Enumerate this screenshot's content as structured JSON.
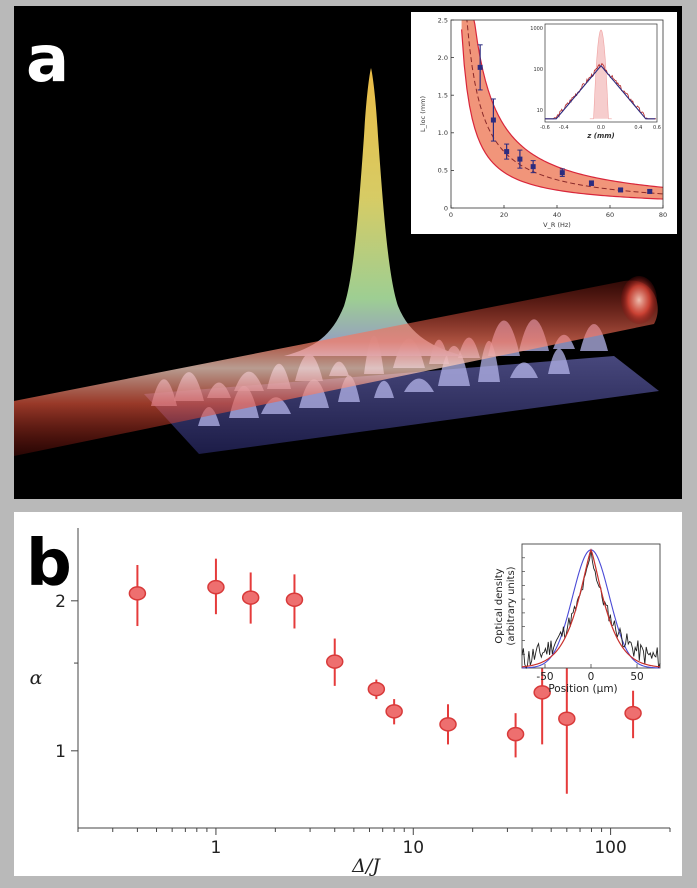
{
  "panel_a": {
    "letter": "a",
    "inset": {
      "chart_data": {
        "type": "line",
        "ylabel": "L_loc (mm)",
        "xlabel": "V_R (Hz)",
        "xlim": [
          0,
          80
        ],
        "ylim": [
          0,
          2.5
        ],
        "xticks": [
          "0",
          "20",
          "40",
          "60",
          "80"
        ],
        "yticks": [
          "0",
          "0.5",
          "1.0",
          "1.5",
          "2.0",
          "2.5"
        ],
        "points": [
          {
            "x": 11,
            "y": 1.87,
            "err": 0.3
          },
          {
            "x": 16,
            "y": 1.17,
            "err": 0.28
          },
          {
            "x": 21,
            "y": 0.75,
            "err": 0.1
          },
          {
            "x": 26,
            "y": 0.65,
            "err": 0.12
          },
          {
            "x": 31,
            "y": 0.55,
            "err": 0.08
          },
          {
            "x": 42,
            "y": 0.47,
            "err": 0.05
          },
          {
            "x": 53,
            "y": 0.33,
            "err": 0.03
          },
          {
            "x": 64,
            "y": 0.24,
            "err": 0.02
          },
          {
            "x": 75,
            "y": 0.22,
            "err": 0.02
          }
        ],
        "sub_inset": {
          "xlabel": "z (mm)",
          "xticks": [
            "-0.6",
            "-0.4",
            "0.0",
            "0.4",
            "0.6"
          ],
          "yticks": [
            "1000",
            "100",
            "10"
          ],
          "xlim": [
            -0.6,
            0.6
          ],
          "scale": "log"
        }
      }
    }
  },
  "panel_b": {
    "letter": "b",
    "chart_data": {
      "type": "scatter",
      "xlabel": "Δ/J",
      "ylabel": "α",
      "xscale": "log",
      "yscale": "log",
      "xlim": [
        0.2,
        200
      ],
      "ylim": [
        0.7,
        2.8
      ],
      "xticks": [
        "1",
        "10",
        "100"
      ],
      "yticks": [
        "1",
        "2"
      ],
      "points": [
        {
          "x": 0.4,
          "y": 2.07,
          "lo": 1.78,
          "hi": 2.36
        },
        {
          "x": 1.0,
          "y": 2.13,
          "lo": 1.88,
          "hi": 2.43
        },
        {
          "x": 1.5,
          "y": 2.03,
          "lo": 1.8,
          "hi": 2.28
        },
        {
          "x": 2.5,
          "y": 2.01,
          "lo": 1.76,
          "hi": 2.26
        },
        {
          "x": 4.0,
          "y": 1.51,
          "lo": 1.35,
          "hi": 1.68
        },
        {
          "x": 6.5,
          "y": 1.33,
          "lo": 1.27,
          "hi": 1.39
        },
        {
          "x": 8.0,
          "y": 1.2,
          "lo": 1.13,
          "hi": 1.27
        },
        {
          "x": 15,
          "y": 1.13,
          "lo": 1.03,
          "hi": 1.24
        },
        {
          "x": 33,
          "y": 1.08,
          "lo": 0.97,
          "hi": 1.19
        },
        {
          "x": 45,
          "y": 1.31,
          "lo": 1.03,
          "hi": 1.62
        },
        {
          "x": 60,
          "y": 1.16,
          "lo": 0.82,
          "hi": 1.62
        },
        {
          "x": 130,
          "y": 1.19,
          "lo": 1.06,
          "hi": 1.32
        }
      ],
      "inset": {
        "ylabel_line1": "Optical density",
        "ylabel_line2": "(arbitrary units)",
        "xlabel": "Position (µm)",
        "xticks": [
          "-50",
          "0",
          "50"
        ],
        "xlim": [
          -75,
          75
        ]
      }
    }
  },
  "colors": {
    "marker_fill": "#ee6f6f",
    "marker_edge": "#d83a3a",
    "errorbar": "#e53b3b",
    "inset_band": "#f08a6c",
    "inset_curve": "#d8263a",
    "inset_marker": "#2c2c80",
    "gaussian_blue": "#4a4ad6",
    "exp_red": "#c8302c"
  }
}
